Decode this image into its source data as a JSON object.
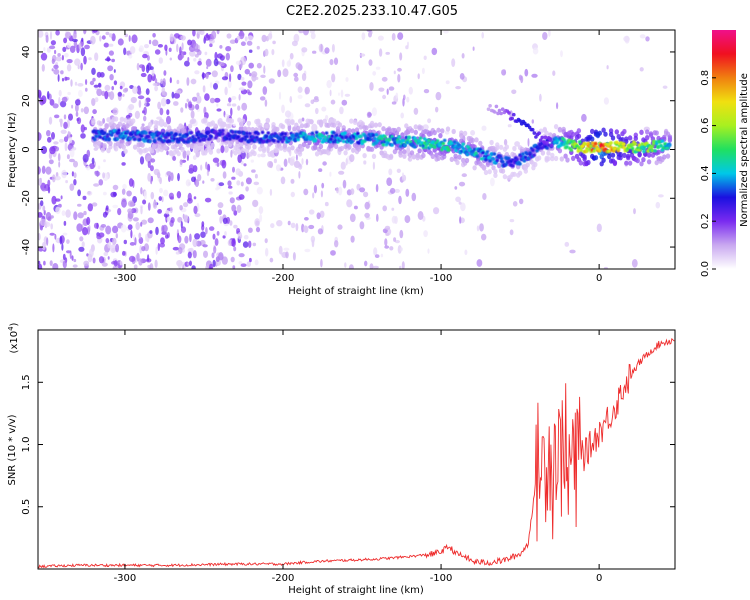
{
  "chart_data": [
    {
      "type": "heatmap",
      "title": "C2E2.2025.233.10.47.G05",
      "xlabel": "Height of straight line (km)",
      "ylabel": "Frequency (Hz)",
      "xlim": [
        -355,
        48
      ],
      "ylim": [
        -49,
        49
      ],
      "xticks": [
        -300,
        -200,
        -100,
        0
      ],
      "yticks": [
        -40,
        -20,
        0,
        20,
        40
      ],
      "grid": false,
      "colorbar": {
        "label": "Normalized spectral amplitude",
        "ticks": [
          0.0,
          0.2,
          0.4,
          0.6,
          0.8
        ],
        "range": [
          0,
          1
        ],
        "colormap": [
          "#ffffff",
          "#c9a8f0",
          "#7a2bf0",
          "#1a10e0",
          "#00c8e8",
          "#20e060",
          "#a8f020",
          "#f0e010",
          "#f08010",
          "#f01020",
          "#f0108a"
        ]
      },
      "ridge": {
        "x": [
          -320,
          -300,
          -280,
          -260,
          -240,
          -220,
          -200,
          -180,
          -160,
          -140,
          -120,
          -100,
          -90,
          -80,
          -70,
          -60,
          -55,
          -50,
          -45,
          -40,
          -35,
          -30,
          -25,
          -20,
          -10,
          0,
          10,
          20,
          30,
          45
        ],
        "freq": [
          6,
          6,
          5,
          5,
          6,
          5,
          5,
          5,
          5,
          4,
          3,
          2,
          1,
          -1,
          -3,
          -5,
          -5,
          -4,
          -2,
          0,
          2,
          3,
          3,
          2,
          1,
          1,
          1,
          1,
          1,
          2
        ],
        "amplitude": [
          0.35,
          0.4,
          0.35,
          0.35,
          0.3,
          0.35,
          0.35,
          0.45,
          0.4,
          0.45,
          0.45,
          0.5,
          0.45,
          0.45,
          0.4,
          0.35,
          0.3,
          0.35,
          0.35,
          0.35,
          0.3,
          0.35,
          0.45,
          0.55,
          0.7,
          0.95,
          0.75,
          0.65,
          0.6,
          0.45
        ]
      },
      "branch": {
        "x": [
          -70,
          -60,
          -50,
          -45,
          -40,
          -35,
          -30
        ],
        "freq": [
          18,
          15,
          12,
          9,
          6,
          4,
          3
        ],
        "amplitude": [
          0.1,
          0.15,
          0.3,
          0.3,
          0.25,
          0.2,
          0.2
        ]
      }
    },
    {
      "type": "line",
      "xlabel": "Height of straight line (km)",
      "ylabel": "SNR (10 * v/v)",
      "y_multiplier": "(x10^4)",
      "xlim": [
        -355,
        48
      ],
      "ylim": [
        0,
        1.92
      ],
      "xticks": [
        -300,
        -200,
        -100,
        0
      ],
      "yticks": [
        0.5,
        1.0,
        1.5
      ],
      "ytick_labels": [
        "0.5",
        "1.0",
        "1.5"
      ],
      "grid": false,
      "series": [
        {
          "color": "#ee2c2c",
          "x": [
            -355,
            -330,
            -300,
            -270,
            -250,
            -230,
            -200,
            -180,
            -160,
            -140,
            -120,
            -105,
            -100,
            -95,
            -90,
            -85,
            -80,
            -70,
            -60,
            -50,
            -45,
            -40,
            -37,
            -35,
            -32,
            -30,
            -27,
            -25,
            -22,
            -20,
            -17,
            -15,
            -12,
            -10,
            -5,
            0,
            5,
            10,
            15,
            20,
            25,
            30,
            35,
            40,
            48
          ],
          "y": [
            0.02,
            0.03,
            0.03,
            0.03,
            0.035,
            0.04,
            0.04,
            0.06,
            0.07,
            0.08,
            0.1,
            0.12,
            0.14,
            0.18,
            0.12,
            0.1,
            0.06,
            0.05,
            0.07,
            0.12,
            0.2,
            0.7,
            0.95,
            0.75,
            1.1,
            0.7,
            1.05,
            0.8,
            1.2,
            0.6,
            1.0,
            0.7,
            1.05,
            0.9,
            1.0,
            1.1,
            1.2,
            1.3,
            1.45,
            1.55,
            1.65,
            1.72,
            1.78,
            1.82,
            1.84
          ]
        }
      ]
    }
  ]
}
